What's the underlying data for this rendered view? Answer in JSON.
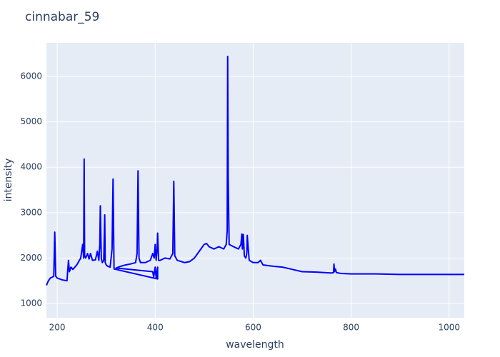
{
  "chart_data": {
    "type": "line",
    "title": "cinnabar_59",
    "x_label": "wavelength",
    "y_label": "intensity",
    "x": [
      178,
      182,
      186,
      190,
      193,
      195,
      197,
      200,
      210,
      220,
      223,
      225,
      228,
      232,
      240,
      248,
      252,
      254,
      255,
      256,
      258,
      262,
      265,
      268,
      272,
      278,
      282,
      285,
      287,
      288,
      290,
      292,
      295,
      297,
      298,
      300,
      303,
      308,
      312,
      314,
      316,
      405,
      405,
      402,
      400,
      397,
      395,
      320,
      330,
      340,
      350,
      360,
      363,
      365,
      367,
      370,
      380,
      390,
      395,
      398,
      400,
      402,
      404,
      405,
      407,
      410,
      420,
      430,
      436,
      438,
      440,
      445,
      460,
      470,
      480,
      490,
      500,
      505,
      510,
      520,
      530,
      540,
      545,
      547,
      548,
      549,
      551,
      560,
      570,
      575,
      577,
      578,
      580,
      582,
      585,
      587,
      588,
      590,
      592,
      600,
      610,
      615,
      620,
      640,
      660,
      680,
      700,
      730,
      760,
      764,
      765,
      766,
      768,
      770,
      780,
      800,
      850,
      900,
      950,
      1000,
      1031
    ],
    "series": [
      {
        "name": "intensity",
        "color": "#0000ff",
        "values": [
          1400,
          1500,
          1560,
          1580,
          1600,
          2570,
          1600,
          1560,
          1520,
          1500,
          1950,
          1700,
          1800,
          1750,
          1850,
          2000,
          2300,
          2000,
          4180,
          2050,
          2000,
          2100,
          1980,
          2100,
          1950,
          1960,
          2150,
          1950,
          2300,
          3150,
          2000,
          1900,
          1950,
          2950,
          1900,
          1850,
          1820,
          1800,
          2200,
          3740,
          1760,
          1540,
          1800,
          1560,
          1800,
          1580,
          1700,
          1780,
          1820,
          1850,
          1870,
          1900,
          2100,
          3920,
          2000,
          1900,
          1900,
          1950,
          2100,
          2000,
          2300,
          1950,
          2200,
          2550,
          1950,
          1950,
          2000,
          1980,
          2100,
          3690,
          2050,
          1950,
          1900,
          1920,
          2000,
          2150,
          2300,
          2320,
          2250,
          2200,
          2250,
          2200,
          2300,
          2600,
          6440,
          3800,
          2300,
          2250,
          2200,
          2300,
          2530,
          2200,
          2520,
          2050,
          2000,
          2100,
          2500,
          2200,
          1950,
          1900,
          1900,
          1950,
          1850,
          1820,
          1800,
          1750,
          1700,
          1690,
          1670,
          1680,
          1870,
          1700,
          1760,
          1680,
          1660,
          1650,
          1650,
          1640,
          1640,
          1640,
          1640
        ]
      }
    ],
    "xlim": [
      178,
      1031
    ],
    "ylim": [
      686,
      6739
    ],
    "xticks": [
      200,
      400,
      600,
      800,
      1000
    ],
    "yticks": [
      1000,
      2000,
      3000,
      4000,
      5000,
      6000
    ],
    "grid": true
  }
}
